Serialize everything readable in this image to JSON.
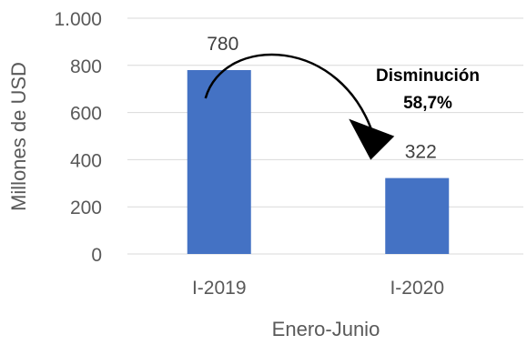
{
  "chart_data": {
    "type": "bar",
    "categories": [
      "I-2019",
      "I-2020"
    ],
    "values": [
      780,
      322
    ],
    "data_labels": [
      "780",
      "322"
    ],
    "xlabel": "Enero-Junio",
    "ylabel": "Millones de USD",
    "ylim": [
      0,
      1000
    ],
    "yticks": [
      0,
      200,
      400,
      600,
      800,
      1000
    ],
    "ytick_labels": [
      "0",
      "200",
      "400",
      "600",
      "800",
      "1.000"
    ],
    "grid": true,
    "legend": "none",
    "bar_color": "#4472C4",
    "annotation": {
      "line1": "Disminución",
      "line2": "58,7%",
      "from": "I-2019",
      "to": "I-2020"
    }
  }
}
